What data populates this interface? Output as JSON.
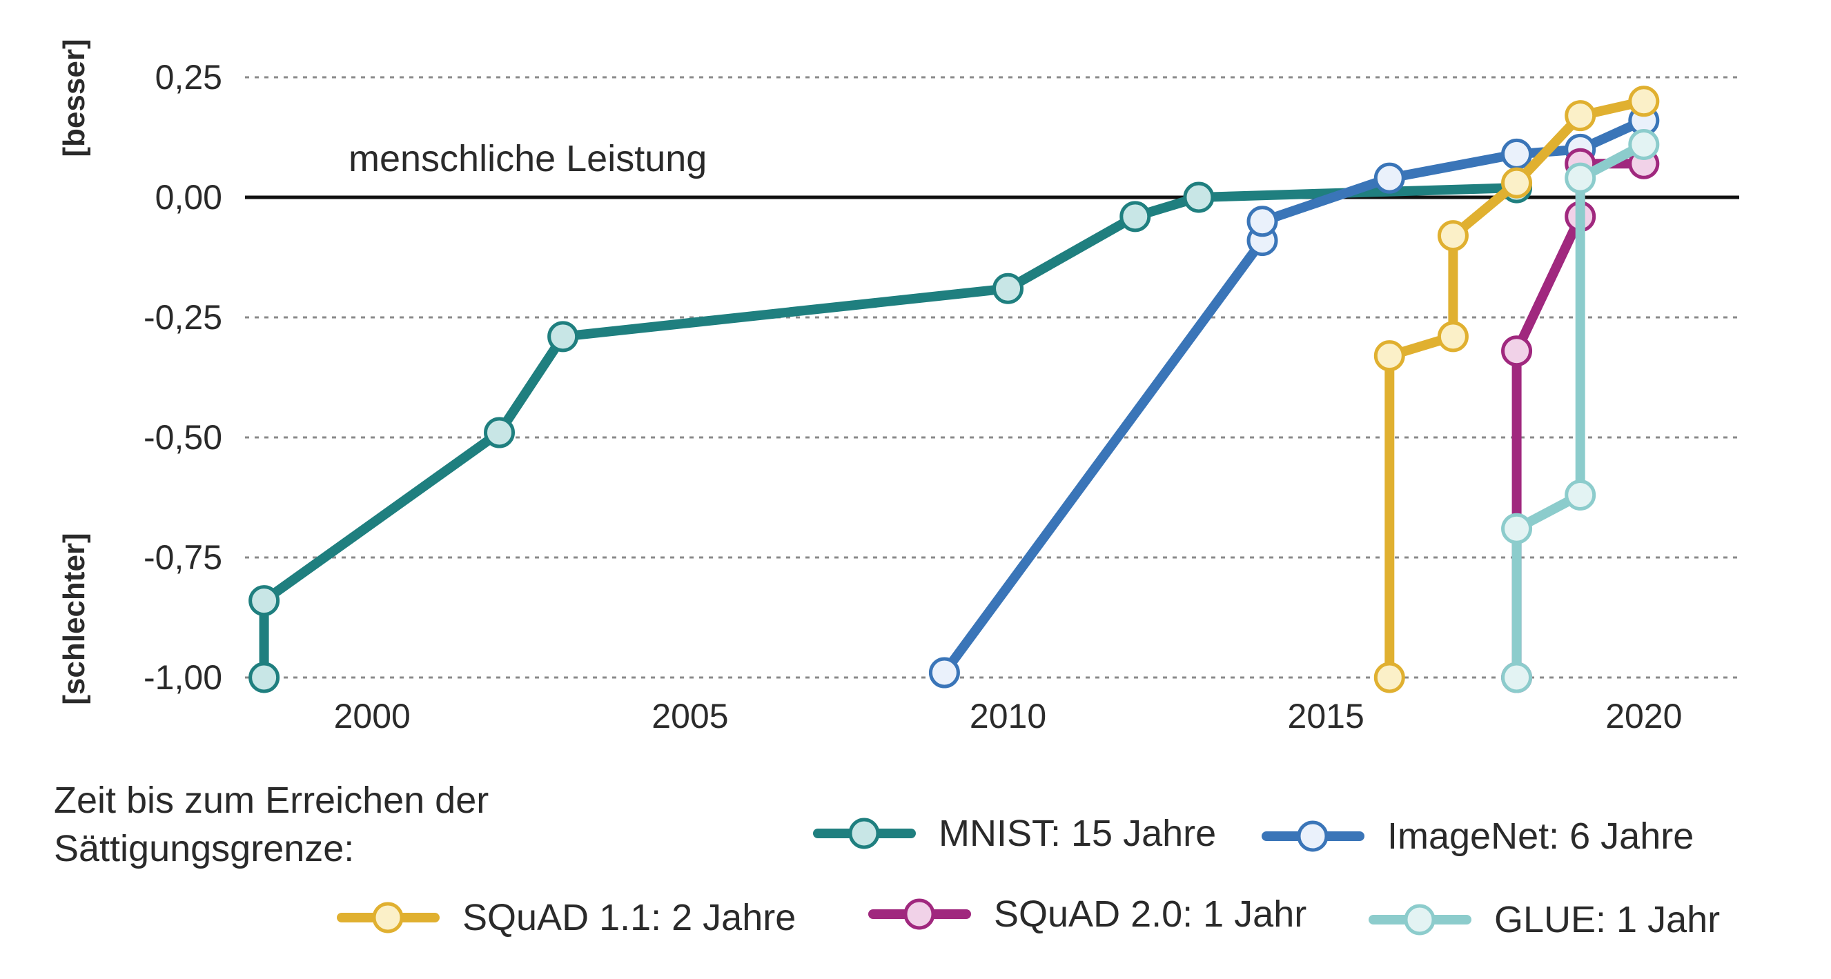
{
  "chart_data": {
    "type": "line",
    "title": "",
    "xlabel": "",
    "ylabel": "",
    "xlim": [
      1998,
      2021.5
    ],
    "ylim": [
      -1.0,
      0.25
    ],
    "x_ticks": [
      2000,
      2005,
      2010,
      2015,
      2020
    ],
    "x_tick_labels": [
      "2000",
      "2005",
      "2010",
      "2015",
      "2020"
    ],
    "y_ticks": [
      0.25,
      0.0,
      -0.25,
      -0.5,
      -0.75,
      -1.0
    ],
    "y_tick_labels": [
      "0,25",
      "0,00",
      "-0,25",
      "-0,50",
      "-0,75",
      "-1,00"
    ],
    "grid": "horizontal-dotted",
    "reference_line": {
      "y": 0.0,
      "label": "menschliche Leistung"
    },
    "y_axis_labels": {
      "top": "[besser]",
      "bottom": "[schlechter]"
    },
    "legend": {
      "placement": "bottom",
      "title_lines": [
        "Zeit bis zum Erreichen der",
        "Sättigungsgrenze:"
      ]
    },
    "series": [
      {
        "name": "MNIST: 15 Jahre",
        "color": "#1f7f7f",
        "fill": "#c8e6e6",
        "points": [
          [
            1998.3,
            -1.0
          ],
          [
            1998.3,
            -0.84
          ],
          [
            2002,
            -0.49
          ],
          [
            2003,
            -0.29
          ],
          [
            2010,
            -0.19
          ],
          [
            2012,
            -0.04
          ],
          [
            2013,
            0.0
          ],
          [
            2018,
            0.02
          ]
        ]
      },
      {
        "name": "ImageNet: 6 Jahre",
        "color": "#3a75b8",
        "fill": "#eaf1fb",
        "points": [
          [
            2009,
            -0.99
          ],
          [
            2014,
            -0.09
          ],
          [
            2014,
            -0.05
          ],
          [
            2016,
            0.04
          ],
          [
            2018,
            0.09
          ],
          [
            2019,
            0.1
          ],
          [
            2020,
            0.16
          ]
        ]
      },
      {
        "name": "SQuAD 1.1: 2 Jahre",
        "color": "#e0b030",
        "fill": "#fbf0c8",
        "points": [
          [
            2016,
            -1.0
          ],
          [
            2016,
            -0.33
          ],
          [
            2017,
            -0.29
          ],
          [
            2017,
            -0.08
          ],
          [
            2018,
            0.03
          ],
          [
            2019,
            0.17
          ],
          [
            2020,
            0.2
          ]
        ]
      },
      {
        "name": "SQuAD 2.0: 1 Jahr",
        "color": "#a0287e",
        "fill": "#f1d2e8",
        "points": [
          [
            2018,
            -1.0
          ],
          [
            2018,
            -0.32
          ],
          [
            2019,
            -0.04
          ],
          [
            2019,
            0.07
          ],
          [
            2020,
            0.07
          ]
        ]
      },
      {
        "name": "GLUE: 1 Jahr",
        "color": "#8ccccc",
        "fill": "#e3f3f3",
        "points": [
          [
            2018,
            -1.0
          ],
          [
            2018,
            -0.69
          ],
          [
            2019,
            -0.62
          ],
          [
            2019,
            0.04
          ],
          [
            2020,
            0.11
          ]
        ]
      }
    ]
  }
}
